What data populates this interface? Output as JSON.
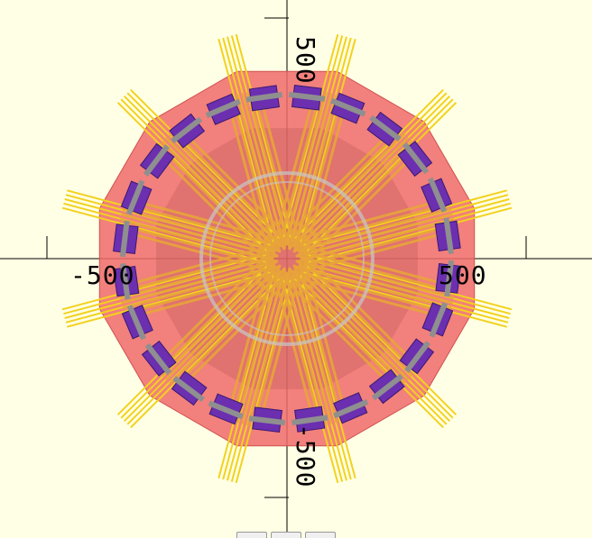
{
  "viewport": {
    "background": "#ffffe5",
    "axis_labels": {
      "pos_y": "500",
      "neg_y": "-500",
      "neg_x": "-500",
      "pos_x": "500"
    },
    "colors": {
      "hull": "#f06a6a",
      "rods": "#e8a43a",
      "spikes": "#f2d21e",
      "servos": "#6b2fb0",
      "ring": "#c8c8c8"
    }
  },
  "toolbar": {
    "buttons": [
      "view-button-1",
      "view-button-2",
      "view-button-3"
    ]
  }
}
